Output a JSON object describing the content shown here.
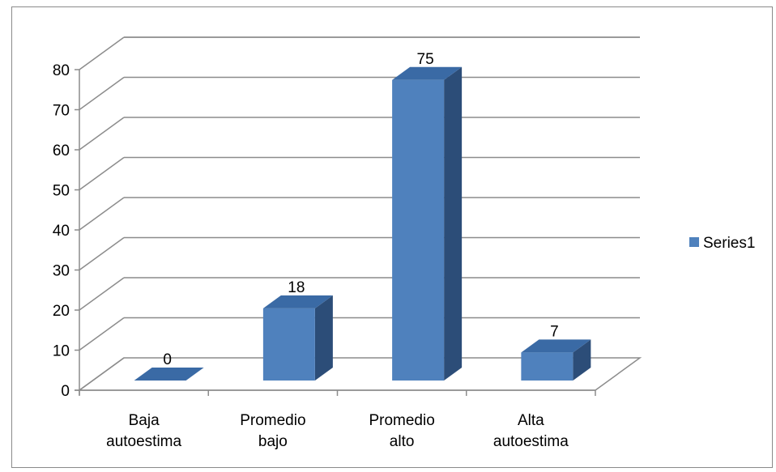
{
  "chart_data": {
    "type": "bar",
    "three_d": true,
    "categories": [
      [
        "Baja",
        "autoestima"
      ],
      [
        "Promedio",
        "bajo"
      ],
      [
        "Promedio",
        "alto"
      ],
      [
        "Alta",
        "autoestima"
      ]
    ],
    "series": [
      {
        "name": "Series1",
        "values": [
          0,
          18,
          75,
          7
        ]
      }
    ],
    "ylim": [
      0,
      80
    ],
    "yticks": [
      0,
      10,
      20,
      30,
      40,
      50,
      60,
      70,
      80
    ],
    "grid": true,
    "legend": "right",
    "colors": {
      "front": "#4f81bd",
      "top": "#3a6aa5",
      "side": "#2c4d78"
    }
  }
}
